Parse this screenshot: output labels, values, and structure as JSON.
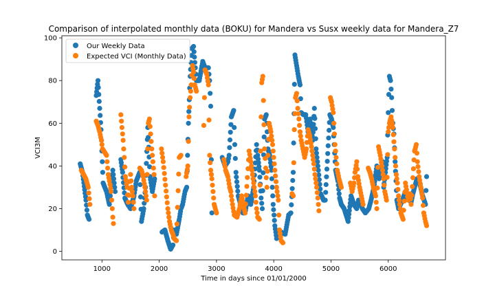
{
  "chart_data": {
    "type": "scatter",
    "title": "Comparison of interpolated monthly data (BOKU) for Mandera vs Susx weekly data for Mandera_Z7",
    "xlabel": "Time in days since 01/01/2000",
    "ylabel": "VCI3M",
    "xlim": [
      300,
      7000
    ],
    "ylim": [
      -4,
      101
    ],
    "xticks": [
      1000,
      2000,
      3000,
      4000,
      5000,
      6000
    ],
    "yticks": [
      0,
      20,
      40,
      60,
      80,
      100
    ],
    "legend_position": "upper-left",
    "series": [
      {
        "name": "Our Weekly Data",
        "color": "#1f77b4",
        "anchors": [
          [
            620,
            41
          ],
          [
            660,
            37
          ],
          [
            720,
            24
          ],
          [
            745,
            17
          ],
          [
            775,
            15
          ],
          [
            900,
            73
          ],
          [
            930,
            80
          ],
          [
            960,
            67
          ],
          [
            985,
            57
          ],
          [
            1020,
            32
          ],
          [
            1080,
            28
          ],
          [
            1130,
            22
          ],
          [
            1160,
            30
          ],
          [
            1190,
            38
          ],
          [
            1230,
            28
          ],
          [
            1330,
            43
          ],
          [
            1360,
            37
          ],
          [
            1400,
            25
          ],
          [
            1450,
            22
          ],
          [
            1500,
            20
          ],
          [
            1560,
            26
          ],
          [
            1600,
            33
          ],
          [
            1660,
            37
          ],
          [
            1690,
            14
          ],
          [
            1730,
            20
          ],
          [
            1760,
            30
          ],
          [
            1800,
            58
          ],
          [
            1840,
            35
          ],
          [
            1880,
            28
          ],
          [
            1920,
            34
          ],
          [
            2050,
            9
          ],
          [
            2100,
            10
          ],
          [
            2150,
            5
          ],
          [
            2200,
            1
          ],
          [
            2240,
            3
          ],
          [
            2260,
            10
          ],
          [
            2300,
            8
          ],
          [
            2350,
            15
          ],
          [
            2380,
            20
          ],
          [
            2410,
            22
          ],
          [
            2450,
            28
          ],
          [
            2480,
            30
          ],
          [
            2510,
            60
          ],
          [
            2540,
            82
          ],
          [
            2570,
            95
          ],
          [
            2600,
            96
          ],
          [
            2630,
            86
          ],
          [
            2650,
            80
          ],
          [
            2700,
            80
          ],
          [
            2760,
            89
          ],
          [
            2800,
            86
          ],
          [
            2860,
            86
          ],
          [
            2880,
            80
          ],
          [
            2900,
            68
          ],
          [
            2920,
            18
          ],
          [
            3100,
            44
          ],
          [
            3150,
            40
          ],
          [
            3200,
            42
          ],
          [
            3220,
            45
          ],
          [
            3260,
            63
          ],
          [
            3300,
            66
          ],
          [
            3320,
            50
          ],
          [
            3340,
            37
          ],
          [
            3380,
            26
          ],
          [
            3420,
            22
          ],
          [
            3460,
            18
          ],
          [
            3500,
            18
          ],
          [
            3550,
            26
          ],
          [
            3600,
            22
          ],
          [
            3650,
            30
          ],
          [
            3700,
            50
          ],
          [
            3720,
            45
          ],
          [
            3750,
            38
          ],
          [
            3780,
            25
          ],
          [
            3800,
            20
          ],
          [
            3840,
            62
          ],
          [
            3870,
            64
          ],
          [
            3900,
            48
          ],
          [
            3930,
            45
          ],
          [
            3960,
            38
          ],
          [
            3990,
            22
          ],
          [
            4020,
            12
          ],
          [
            4050,
            6
          ],
          [
            4080,
            7
          ],
          [
            4130,
            9
          ],
          [
            4200,
            8
          ],
          [
            4260,
            17
          ],
          [
            4300,
            18
          ],
          [
            4340,
            37
          ],
          [
            4370,
            92
          ],
          [
            4400,
            87
          ],
          [
            4430,
            82
          ],
          [
            4460,
            78
          ],
          [
            4480,
            65
          ],
          [
            4520,
            64
          ],
          [
            4560,
            64
          ],
          [
            4600,
            56
          ],
          [
            4640,
            62
          ],
          [
            4680,
            52
          ],
          [
            4710,
            67
          ],
          [
            4740,
            48
          ],
          [
            4780,
            38
          ],
          [
            4820,
            27
          ],
          [
            4870,
            24
          ],
          [
            4900,
            24
          ],
          [
            4980,
            64
          ],
          [
            5010,
            62
          ],
          [
            5040,
            58
          ],
          [
            5080,
            38
          ],
          [
            5120,
            33
          ],
          [
            5150,
            25
          ],
          [
            5180,
            22
          ],
          [
            5230,
            20
          ],
          [
            5300,
            14
          ],
          [
            5350,
            26
          ],
          [
            5400,
            22
          ],
          [
            5450,
            20
          ],
          [
            5480,
            24
          ],
          [
            5550,
            20
          ],
          [
            5600,
            18
          ],
          [
            5660,
            20
          ],
          [
            5700,
            24
          ],
          [
            5750,
            30
          ],
          [
            5800,
            40
          ],
          [
            5840,
            34
          ],
          [
            5870,
            38
          ],
          [
            5900,
            42
          ],
          [
            5920,
            30
          ],
          [
            5950,
            37
          ],
          [
            5980,
            44
          ],
          [
            6000,
            65
          ],
          [
            6020,
            82
          ],
          [
            6040,
            80
          ],
          [
            6060,
            72
          ],
          [
            6080,
            60
          ],
          [
            6100,
            55
          ],
          [
            6120,
            42
          ],
          [
            6150,
            24
          ],
          [
            6180,
            20
          ],
          [
            6250,
            24
          ],
          [
            6300,
            28
          ],
          [
            6340,
            25
          ],
          [
            6400,
            23
          ],
          [
            6430,
            27
          ],
          [
            6460,
            30
          ],
          [
            6500,
            34
          ],
          [
            6550,
            32
          ],
          [
            6600,
            26
          ],
          [
            6650,
            22
          ],
          [
            6670,
            35
          ]
        ]
      },
      {
        "name": "Expected VCI (Monthly Data)",
        "color": "#ff7f0e",
        "anchors": [
          [
            640,
            38
          ],
          [
            680,
            36
          ],
          [
            720,
            34
          ],
          [
            760,
            30
          ],
          [
            790,
            22
          ],
          [
            900,
            61
          ],
          [
            930,
            59
          ],
          [
            960,
            56
          ],
          [
            990,
            52
          ],
          [
            1010,
            48
          ],
          [
            1080,
            45
          ],
          [
            1110,
            36
          ],
          [
            1130,
            33
          ],
          [
            1160,
            28
          ],
          [
            1190,
            16
          ],
          [
            1200,
            13
          ],
          [
            1330,
            64
          ],
          [
            1350,
            58
          ],
          [
            1370,
            52
          ],
          [
            1390,
            44
          ],
          [
            1410,
            35
          ],
          [
            1440,
            30
          ],
          [
            1460,
            23
          ],
          [
            1500,
            36
          ],
          [
            1520,
            30
          ],
          [
            1540,
            26
          ],
          [
            1560,
            20
          ],
          [
            1660,
            39
          ],
          [
            1690,
            38
          ],
          [
            1720,
            35
          ],
          [
            1750,
            30
          ],
          [
            1780,
            24
          ],
          [
            1810,
            60
          ],
          [
            1830,
            62
          ],
          [
            1850,
            55
          ],
          [
            1870,
            48
          ],
          [
            1890,
            42
          ],
          [
            1910,
            36
          ],
          [
            1920,
            26
          ],
          [
            2040,
            48
          ],
          [
            2070,
            42
          ],
          [
            2150,
            20
          ],
          [
            2180,
            14
          ],
          [
            2210,
            10
          ],
          [
            2240,
            8
          ],
          [
            2260,
            6
          ],
          [
            2300,
            5
          ],
          [
            2350,
            44
          ],
          [
            2380,
            45
          ],
          [
            2470,
            35
          ],
          [
            2500,
            40
          ],
          [
            2520,
            63
          ],
          [
            2540,
            72
          ],
          [
            2560,
            78
          ],
          [
            2580,
            87
          ],
          [
            2600,
            84
          ],
          [
            2620,
            78
          ],
          [
            2650,
            75
          ],
          [
            2780,
            59
          ],
          [
            2800,
            85
          ],
          [
            2830,
            83
          ],
          [
            2860,
            78
          ],
          [
            2880,
            45
          ],
          [
            2900,
            38
          ],
          [
            2920,
            34
          ],
          [
            2940,
            28
          ],
          [
            2960,
            22
          ],
          [
            3000,
            18
          ],
          [
            3130,
            43
          ],
          [
            3160,
            38
          ],
          [
            3200,
            35
          ],
          [
            3230,
            30
          ],
          [
            3250,
            28
          ],
          [
            3280,
            22
          ],
          [
            3310,
            17
          ],
          [
            3360,
            16
          ],
          [
            3400,
            20
          ],
          [
            3440,
            26
          ],
          [
            3470,
            22
          ],
          [
            3500,
            18
          ],
          [
            3570,
            47
          ],
          [
            3600,
            42
          ],
          [
            3620,
            38
          ],
          [
            3650,
            32
          ],
          [
            3680,
            26
          ],
          [
            3700,
            20
          ],
          [
            3720,
            16
          ],
          [
            3750,
            15
          ],
          [
            3790,
            79
          ],
          [
            3810,
            82
          ],
          [
            3840,
            48
          ],
          [
            3880,
            30
          ],
          [
            3920,
            60
          ],
          [
            3950,
            56
          ],
          [
            3980,
            50
          ],
          [
            4000,
            44
          ],
          [
            4020,
            38
          ],
          [
            4050,
            30
          ],
          [
            4080,
            24
          ],
          [
            4100,
            10
          ],
          [
            4130,
            5
          ],
          [
            4160,
            4
          ],
          [
            4320,
            27
          ],
          [
            4340,
            26
          ],
          [
            4360,
            57
          ],
          [
            4380,
            72
          ],
          [
            4400,
            74
          ],
          [
            4420,
            67
          ],
          [
            4440,
            62
          ],
          [
            4460,
            56
          ],
          [
            4480,
            52
          ],
          [
            4540,
            44
          ],
          [
            4570,
            48
          ],
          [
            4600,
            57
          ],
          [
            4630,
            54
          ],
          [
            4660,
            49
          ],
          [
            4700,
            41
          ],
          [
            4720,
            36
          ],
          [
            4750,
            30
          ],
          [
            4770,
            25
          ],
          [
            4790,
            19
          ],
          [
            4990,
            72
          ],
          [
            5010,
            70
          ],
          [
            5040,
            65
          ],
          [
            5070,
            50
          ],
          [
            5090,
            44
          ],
          [
            5110,
            38
          ],
          [
            5140,
            34
          ],
          [
            5180,
            30
          ],
          [
            5340,
            32
          ],
          [
            5370,
            28
          ],
          [
            5400,
            32
          ],
          [
            5420,
            37
          ],
          [
            5450,
            42
          ],
          [
            5470,
            35
          ],
          [
            5500,
            30
          ],
          [
            5530,
            26
          ],
          [
            5560,
            22
          ],
          [
            5650,
            39
          ],
          [
            5680,
            37
          ],
          [
            5710,
            34
          ],
          [
            5740,
            30
          ],
          [
            5780,
            26
          ],
          [
            5800,
            20
          ],
          [
            5830,
            49
          ],
          [
            5860,
            45
          ],
          [
            5890,
            40
          ],
          [
            5920,
            34
          ],
          [
            5940,
            28
          ],
          [
            5970,
            24
          ],
          [
            6000,
            56
          ],
          [
            6020,
            60
          ],
          [
            6050,
            63
          ],
          [
            6080,
            58
          ],
          [
            6110,
            48
          ],
          [
            6140,
            36
          ],
          [
            6160,
            32
          ],
          [
            6180,
            26
          ],
          [
            6220,
            18
          ],
          [
            6260,
            15
          ],
          [
            6300,
            32
          ],
          [
            6350,
            24
          ],
          [
            6380,
            27
          ],
          [
            6400,
            22
          ],
          [
            6460,
            47
          ],
          [
            6490,
            50
          ],
          [
            6510,
            42
          ],
          [
            6540,
            35
          ],
          [
            6570,
            30
          ],
          [
            6600,
            25
          ],
          [
            6620,
            18
          ],
          [
            6650,
            14
          ],
          [
            6670,
            12
          ]
        ]
      }
    ]
  }
}
